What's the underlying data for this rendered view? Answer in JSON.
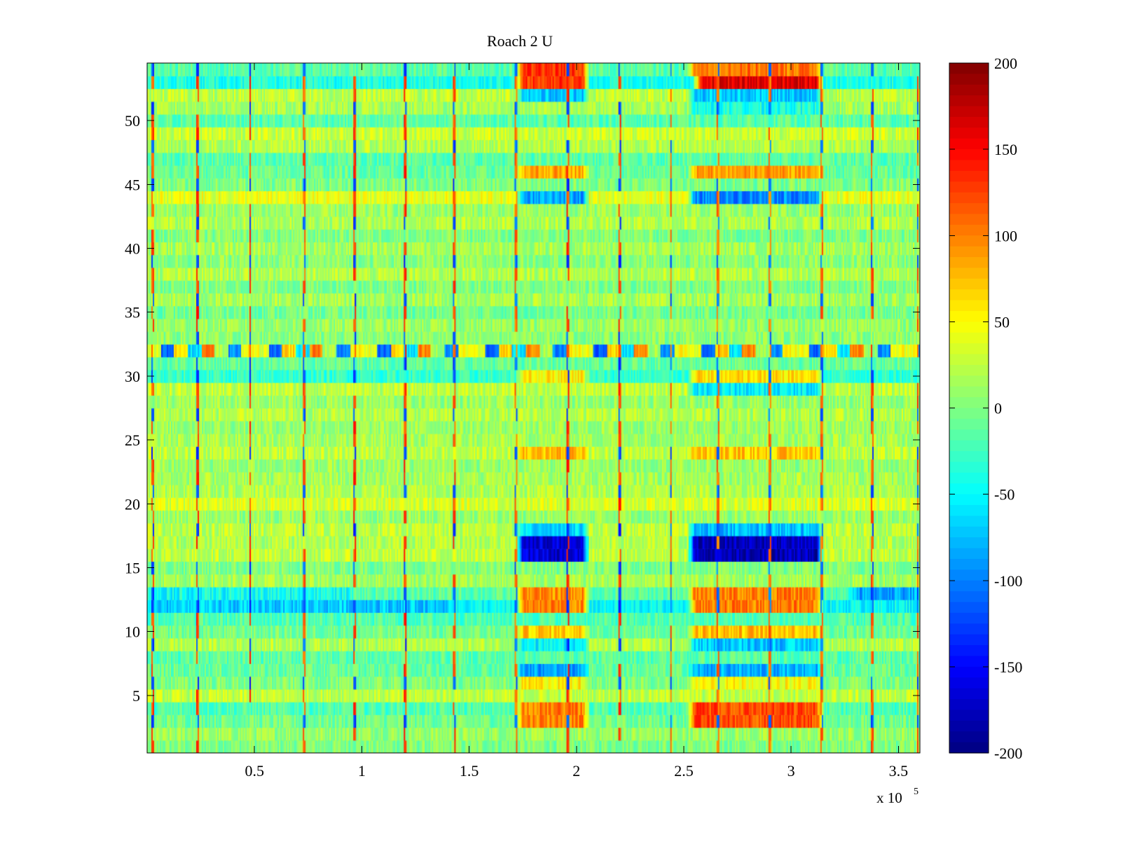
{
  "chart_data": {
    "type": "heatmap",
    "title": "Roach 2 U",
    "xlabel": "",
    "ylabel": "",
    "x_exponent_label": "x 10",
    "x_exponent_power": "5",
    "xlim": [
      0,
      3.6
    ],
    "ylim": [
      0.5,
      54.5
    ],
    "x_ticks": [
      {
        "value": 0.5,
        "label": "0.5"
      },
      {
        "value": 1.0,
        "label": "1"
      },
      {
        "value": 1.5,
        "label": "1.5"
      },
      {
        "value": 2.0,
        "label": "2"
      },
      {
        "value": 2.5,
        "label": "2.5"
      },
      {
        "value": 3.0,
        "label": "3"
      },
      {
        "value": 3.5,
        "label": "3.5"
      }
    ],
    "y_ticks": [
      {
        "value": 5,
        "label": "5"
      },
      {
        "value": 10,
        "label": "10"
      },
      {
        "value": 15,
        "label": "15"
      },
      {
        "value": 20,
        "label": "20"
      },
      {
        "value": 25,
        "label": "25"
      },
      {
        "value": 30,
        "label": "30"
      },
      {
        "value": 35,
        "label": "35"
      },
      {
        "value": 40,
        "label": "40"
      },
      {
        "value": 45,
        "label": "45"
      },
      {
        "value": 50,
        "label": "50"
      }
    ],
    "colorbar": {
      "colormap": "jet",
      "clim": [
        -200,
        200
      ],
      "ticks": [
        {
          "value": 200,
          "label": "200"
        },
        {
          "value": 150,
          "label": "150"
        },
        {
          "value": 100,
          "label": "100"
        },
        {
          "value": 50,
          "label": "50"
        },
        {
          "value": 0,
          "label": "0"
        },
        {
          "value": -50,
          "label": "-50"
        },
        {
          "value": -100,
          "label": "-100"
        },
        {
          "value": -150,
          "label": "-150"
        },
        {
          "value": -200,
          "label": "-200"
        }
      ]
    },
    "rows": 54,
    "baseline_value": 5,
    "row_base_offsets": [
      [
        1,
        -5
      ],
      [
        2,
        5
      ],
      [
        3,
        -10
      ],
      [
        4,
        -25
      ],
      [
        5,
        20
      ],
      [
        6,
        -5
      ],
      [
        7,
        -15
      ],
      [
        8,
        -20
      ],
      [
        9,
        15
      ],
      [
        10,
        -10
      ],
      [
        11,
        -25
      ],
      [
        12,
        -55
      ],
      [
        13,
        -20
      ],
      [
        14,
        10
      ],
      [
        15,
        -5
      ],
      [
        16,
        20
      ],
      [
        17,
        15
      ],
      [
        18,
        20
      ],
      [
        19,
        5
      ],
      [
        20,
        30
      ],
      [
        21,
        15
      ],
      [
        22,
        10
      ],
      [
        23,
        5
      ],
      [
        24,
        20
      ],
      [
        25,
        10
      ],
      [
        26,
        5
      ],
      [
        27,
        15
      ],
      [
        28,
        5
      ],
      [
        29,
        20
      ],
      [
        30,
        -35
      ],
      [
        31,
        -15
      ],
      [
        32,
        15
      ],
      [
        33,
        0
      ],
      [
        34,
        5
      ],
      [
        35,
        -10
      ],
      [
        36,
        10
      ],
      [
        37,
        -5
      ],
      [
        38,
        15
      ],
      [
        39,
        0
      ],
      [
        40,
        10
      ],
      [
        41,
        -5
      ],
      [
        42,
        15
      ],
      [
        43,
        5
      ],
      [
        44,
        35
      ],
      [
        45,
        -5
      ],
      [
        46,
        -15
      ],
      [
        47,
        -20
      ],
      [
        48,
        15
      ],
      [
        49,
        25
      ],
      [
        50,
        -20
      ],
      [
        51,
        10
      ],
      [
        52,
        20
      ],
      [
        53,
        -45
      ],
      [
        54,
        -20
      ]
    ],
    "noise_amplitude": 22,
    "bursts": [
      {
        "x": [
          1.72,
          2.06
        ],
        "rows": [
          54,
          53
        ],
        "value": 130
      },
      {
        "x": [
          1.72,
          2.06
        ],
        "rows": [
          52
        ],
        "value": -70
      },
      {
        "x": [
          1.72,
          2.06
        ],
        "rows": [
          46
        ],
        "value": 85
      },
      {
        "x": [
          1.72,
          2.06
        ],
        "rows": [
          44
        ],
        "value": -85
      },
      {
        "x": [
          1.72,
          2.06
        ],
        "rows": [
          30
        ],
        "value": 55
      },
      {
        "x": [
          1.72,
          2.06
        ],
        "rows": [
          24
        ],
        "value": 75
      },
      {
        "x": [
          1.72,
          2.06
        ],
        "rows": [
          18
        ],
        "value": -65
      },
      {
        "x": [
          1.72,
          2.06
        ],
        "rows": [
          17,
          16
        ],
        "value": -165
      },
      {
        "x": [
          1.72,
          2.06
        ],
        "rows": [
          13,
          12
        ],
        "value": 95
      },
      {
        "x": [
          1.72,
          2.06
        ],
        "rows": [
          10
        ],
        "value": 70
      },
      {
        "x": [
          1.72,
          2.06
        ],
        "rows": [
          9
        ],
        "value": -55
      },
      {
        "x": [
          1.72,
          2.06
        ],
        "rows": [
          7
        ],
        "value": -85
      },
      {
        "x": [
          1.72,
          2.06
        ],
        "rows": [
          6
        ],
        "value": 55
      },
      {
        "x": [
          1.72,
          2.06
        ],
        "rows": [
          4,
          3
        ],
        "value": 100
      },
      {
        "x": [
          2.52,
          3.15
        ],
        "rows": [
          54
        ],
        "value": 105
      },
      {
        "x": [
          2.55,
          3.15
        ],
        "rows": [
          53
        ],
        "value": 160
      },
      {
        "x": [
          2.52,
          3.15
        ],
        "rows": [
          52
        ],
        "value": -70
      },
      {
        "x": [
          2.52,
          3.15
        ],
        "rows": [
          51
        ],
        "value": -40
      },
      {
        "x": [
          2.52,
          3.15
        ],
        "rows": [
          46
        ],
        "value": 85
      },
      {
        "x": [
          2.52,
          3.15
        ],
        "rows": [
          44
        ],
        "value": -95
      },
      {
        "x": [
          2.52,
          3.15
        ],
        "rows": [
          30
        ],
        "value": 60
      },
      {
        "x": [
          2.52,
          3.15
        ],
        "rows": [
          29
        ],
        "value": -55
      },
      {
        "x": [
          2.52,
          3.15
        ],
        "rows": [
          24
        ],
        "value": 70
      },
      {
        "x": [
          2.52,
          3.15
        ],
        "rows": [
          18
        ],
        "value": -75
      },
      {
        "x": [
          2.52,
          3.15
        ],
        "rows": [
          17,
          16
        ],
        "value": -175
      },
      {
        "x": [
          2.52,
          3.15
        ],
        "rows": [
          13,
          12
        ],
        "value": 100
      },
      {
        "x": [
          2.52,
          3.15
        ],
        "rows": [
          10
        ],
        "value": 75
      },
      {
        "x": [
          2.52,
          3.15
        ],
        "rows": [
          9
        ],
        "value": -70
      },
      {
        "x": [
          2.52,
          3.15
        ],
        "rows": [
          7
        ],
        "value": -80
      },
      {
        "x": [
          2.52,
          3.15
        ],
        "rows": [
          6
        ],
        "value": 50
      },
      {
        "x": [
          2.52,
          3.15
        ],
        "rows": [
          4,
          3
        ],
        "value": 120
      },
      {
        "x": [
          3.27,
          3.6
        ],
        "rows": [
          13
        ],
        "value": -85
      },
      {
        "x": [
          0.0,
          0.97
        ],
        "rows": [
          13
        ],
        "value": -45
      },
      {
        "x": [
          0.0,
          1.42
        ],
        "rows": [
          12
        ],
        "value": -70
      }
    ],
    "row32_pattern": {
      "row": 32,
      "period": 0.063,
      "values": [
        40,
        -110,
        65,
        -60,
        100,
        15,
        -95,
        50
      ]
    },
    "spikes": [
      {
        "x": 0.025,
        "value": 140
      },
      {
        "x": 0.235,
        "value": 150
      },
      {
        "x": 0.48,
        "value": 155
      },
      {
        "x": 0.73,
        "value": 135
      },
      {
        "x": 0.965,
        "value": 150
      },
      {
        "x": 1.2,
        "value": 150
      },
      {
        "x": 1.43,
        "value": 140
      },
      {
        "x": 1.72,
        "value": 125
      },
      {
        "x": 1.96,
        "value": 150
      },
      {
        "x": 2.2,
        "value": 150
      },
      {
        "x": 2.44,
        "value": 130
      },
      {
        "x": 2.66,
        "value": 125
      },
      {
        "x": 2.9,
        "value": 125
      },
      {
        "x": 3.14,
        "value": 125
      },
      {
        "x": 3.38,
        "value": 135
      },
      {
        "x": 3.59,
        "value": 140
      }
    ]
  }
}
